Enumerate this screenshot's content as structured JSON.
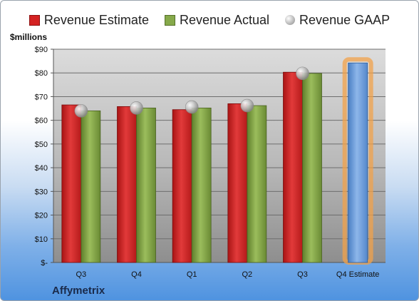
{
  "unit_label": "$millions",
  "company": "Affymetrix",
  "legend": {
    "estimate": "Revenue Estimate",
    "actual": "Revenue Actual",
    "gaap": "Revenue GAAP"
  },
  "colors": {
    "estimate": "#d42222",
    "actual": "#86a94a",
    "gaap": "#b8b8b8",
    "future_estimate": "#6f9fdc",
    "highlight": "#f2a24a"
  },
  "chart_data": {
    "type": "bar",
    "categories": [
      "Q3",
      "Q4",
      "Q1",
      "Q2",
      "Q3",
      "Q4 Estimate"
    ],
    "ylabel": "$millions",
    "ylim": [
      0,
      90
    ],
    "yticks": [
      0,
      10,
      20,
      30,
      40,
      50,
      60,
      70,
      80,
      90
    ],
    "ytick_labels": [
      "$-",
      "$10",
      "$20",
      "$30",
      "$40",
      "$50",
      "$60",
      "$70",
      "$80",
      "$90"
    ],
    "grid": true,
    "legend_position": "top",
    "series": [
      {
        "name": "Revenue Estimate",
        "values": [
          66.5,
          65.8,
          64.5,
          67.0,
          80.3,
          84.2
        ]
      },
      {
        "name": "Revenue Actual",
        "values": [
          64.0,
          65.2,
          65.2,
          66.2,
          79.8,
          null
        ]
      },
      {
        "name": "Revenue GAAP",
        "values": [
          64.0,
          65.2,
          65.6,
          66.2,
          79.8,
          null
        ]
      }
    ]
  }
}
